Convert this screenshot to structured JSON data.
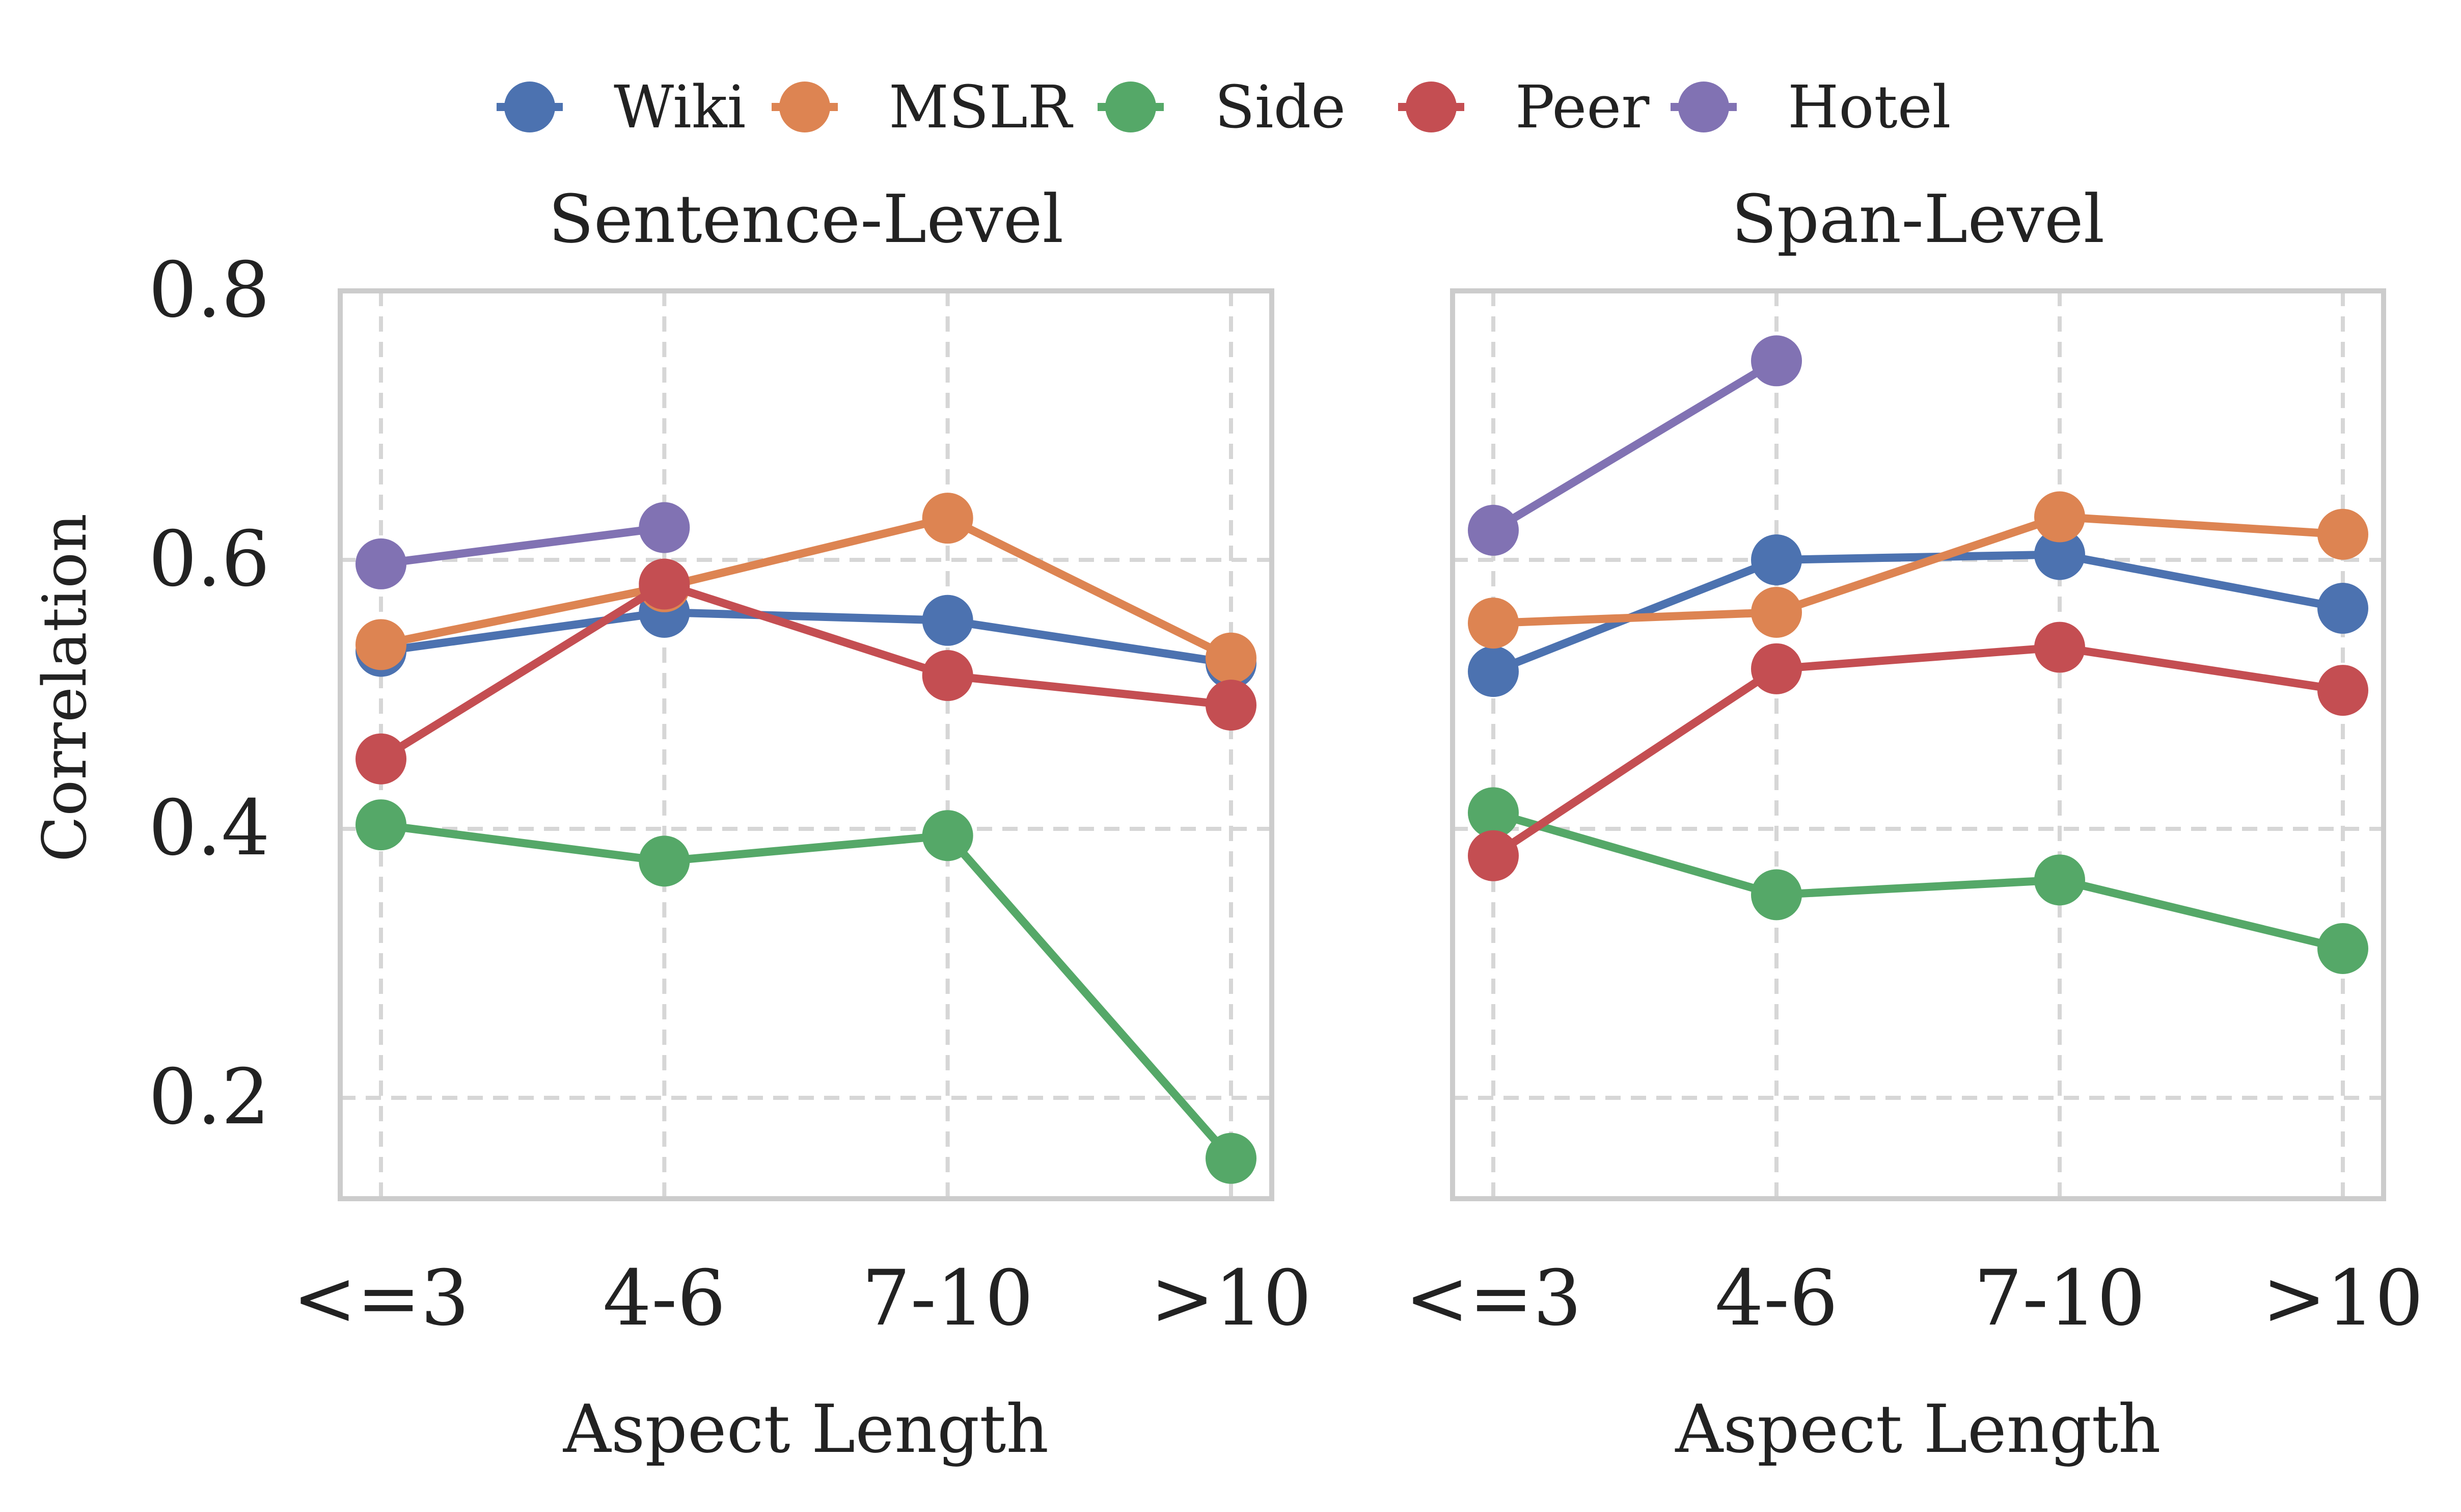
{
  "chart_data": [
    {
      "type": "line",
      "title": "Sentence-Level",
      "xlabel": "Aspect Length",
      "ylabel": "Correlation",
      "categories": [
        "<=3",
        "4-6",
        "7-10",
        ">10"
      ],
      "ylim": [
        0.125,
        0.8
      ],
      "yticks": [
        "0.8",
        "0.6",
        "0.4",
        "0.2"
      ],
      "grid": true,
      "series": [
        {
          "name": "Wiki",
          "values": [
            0.532,
            0.561,
            0.555,
            0.523
          ]
        },
        {
          "name": "MSLR",
          "values": [
            0.537,
            0.58,
            0.631,
            0.527
          ]
        },
        {
          "name": "Side",
          "values": [
            0.403,
            0.376,
            0.395,
            0.155
          ]
        },
        {
          "name": "Peer",
          "values": [
            0.452,
            0.582,
            0.514,
            0.492
          ]
        },
        {
          "name": "Hotel",
          "values": [
            0.597,
            0.624,
            null,
            null
          ]
        }
      ]
    },
    {
      "type": "line",
      "title": "Span-Level",
      "xlabel": "Aspect Length",
      "ylabel": "",
      "categories": [
        "<=3",
        "4-6",
        "7-10",
        ">10"
      ],
      "ylim": [
        0.125,
        0.8
      ],
      "yticks": [],
      "grid": true,
      "series": [
        {
          "name": "Wiki",
          "values": [
            0.517,
            0.6,
            0.604,
            0.564
          ]
        },
        {
          "name": "MSLR",
          "values": [
            0.553,
            0.561,
            0.632,
            0.619
          ]
        },
        {
          "name": "Side",
          "values": [
            0.412,
            0.351,
            0.362,
            0.311
          ]
        },
        {
          "name": "Peer",
          "values": [
            0.38,
            0.519,
            0.535,
            0.503
          ]
        },
        {
          "name": "Hotel",
          "values": [
            0.622,
            0.748,
            null,
            null
          ]
        }
      ]
    }
  ],
  "legend": {
    "placement": "top-center",
    "entries": [
      "Wiki",
      "MSLR",
      "Side",
      "Peer",
      "Hotel"
    ]
  },
  "colors": {
    "Wiki": "#4c72b0",
    "MSLR": "#dd8452",
    "Side": "#55a868",
    "Peer": "#c44e52",
    "Hotel": "#8172b3",
    "grid": "#d6d6d6",
    "frame": "#cccccc"
  }
}
